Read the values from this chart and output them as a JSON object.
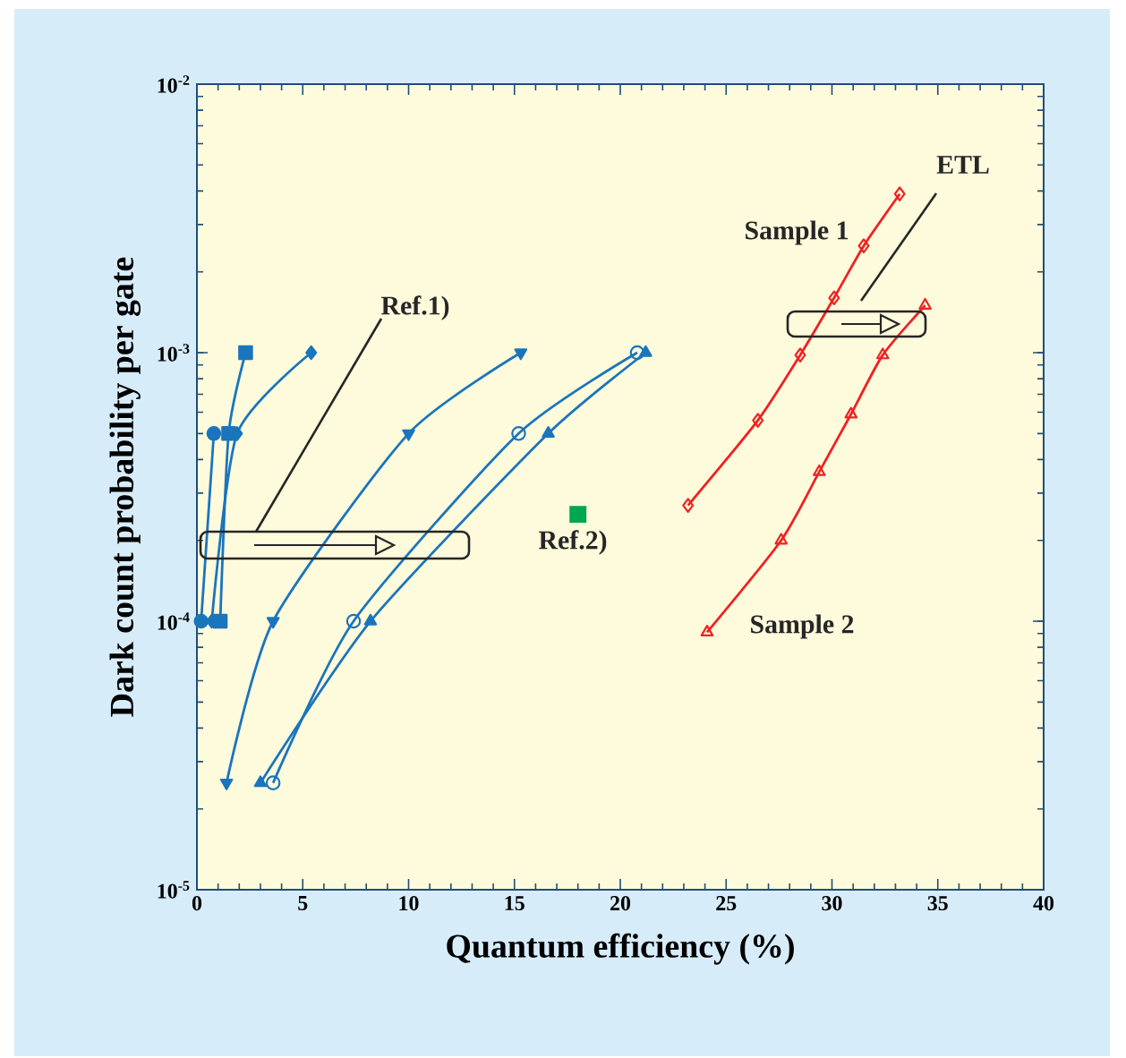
{
  "chart_data": {
    "type": "line",
    "xlabel": "Quantum efficiency (%)",
    "ylabel": "Dark count probability per gate",
    "xlim": [
      0,
      40
    ],
    "xticks": [
      0,
      5,
      10,
      15,
      20,
      25,
      30,
      35,
      40
    ],
    "ylim": [
      1e-05,
      0.01
    ],
    "yticks": [
      {
        "value": 1e-05,
        "label": "10$^{-5}$"
      },
      {
        "value": 0.0001,
        "label": "10$^{-4}$"
      },
      {
        "value": 0.001,
        "label": "10$^{-3}$"
      },
      {
        "value": 0.01,
        "label": "10$^{-2}$"
      }
    ],
    "log": "y",
    "grid": false,
    "legend": false,
    "line_style": "solid",
    "annotations": [
      "Ref.1)",
      "ETL"
    ],
    "series": [
      {
        "color": "#1a75bc",
        "marker": "square",
        "x": [
          1.1,
          1.5,
          2.3
        ],
        "values": [
          0.0001,
          0.0005,
          0.001
        ]
      },
      {
        "color": "#1a75bc",
        "marker": "circle",
        "x": [
          0.2,
          0.8
        ],
        "values": [
          0.0001,
          0.0005
        ]
      },
      {
        "color": "#1a75bc",
        "marker": "diamond",
        "x": [
          0.7,
          1.9,
          5.4
        ],
        "values": [
          0.0001,
          0.0005,
          0.001
        ]
      },
      {
        "color": "#1a75bc",
        "marker": "triangle-down",
        "x": [
          1.4,
          3.6,
          10.0,
          15.3
        ],
        "values": [
          2.5e-05,
          0.0001,
          0.0005,
          0.001
        ]
      },
      {
        "color": "#1a75bc",
        "marker": "circle-open",
        "x": [
          3.6,
          7.4,
          15.2,
          20.8
        ],
        "values": [
          2.5e-05,
          0.0001,
          0.0005,
          0.001
        ]
      },
      {
        "color": "#1a75bc",
        "marker": "triangle",
        "x": [
          3.0,
          8.2,
          16.6,
          21.2
        ],
        "values": [
          2.5e-05,
          0.0001,
          0.0005,
          0.001
        ]
      },
      {
        "name": "Ref.2)",
        "type": "scatter",
        "color": "#00a651",
        "marker": "square",
        "x": [
          18.0
        ],
        "values": [
          0.00025
        ]
      },
      {
        "name": "Sample 1",
        "color": "#ee2222",
        "marker": "diamond-open",
        "x": [
          23.2,
          26.5,
          28.5,
          30.1,
          31.5,
          33.2
        ],
        "values": [
          0.00027,
          0.00056,
          0.00098,
          0.0016,
          0.0025,
          0.0039
        ]
      },
      {
        "name": "Sample 2",
        "color": "#ee2222",
        "marker": "triangle-open",
        "x": [
          24.1,
          27.6,
          29.4,
          30.9,
          32.4,
          34.4
        ],
        "values": [
          9.1e-05,
          0.0002,
          0.00036,
          0.00059,
          0.00098,
          0.0015
        ]
      }
    ]
  }
}
